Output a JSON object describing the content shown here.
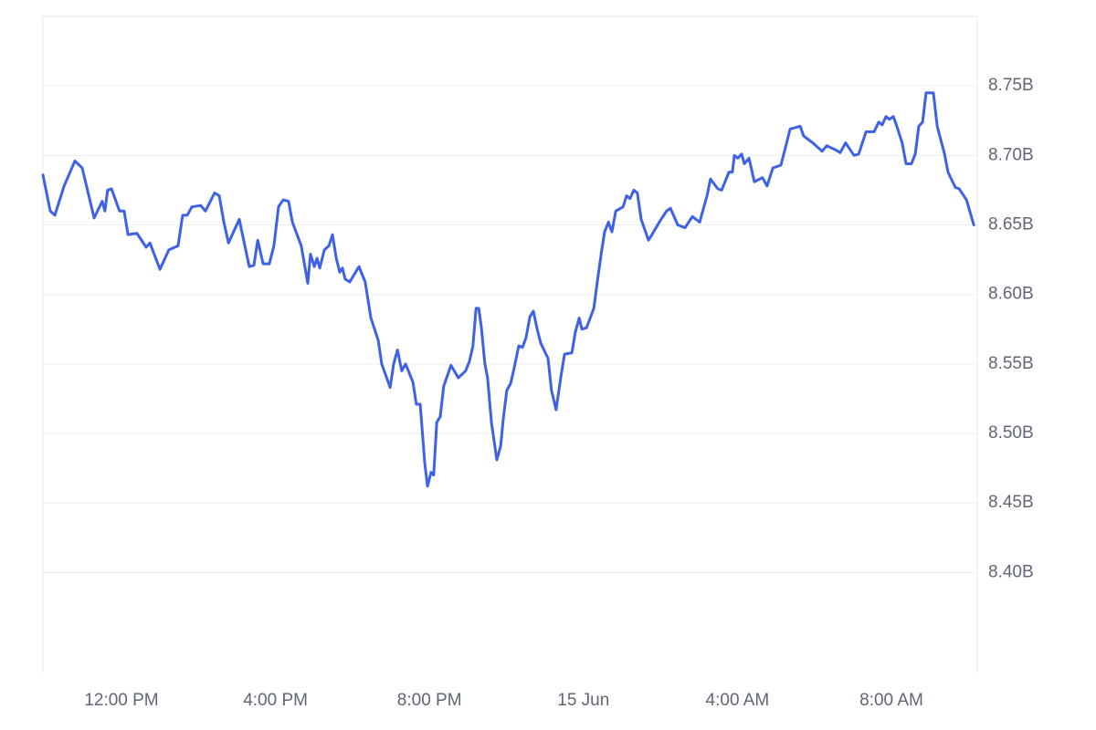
{
  "chart_data": {
    "type": "line",
    "color": "#3d62e6",
    "grid": true,
    "x": [
      9.96,
      10.15,
      10.27,
      10.51,
      10.79,
      10.98,
      11.29,
      11.5,
      11.57,
      11.64,
      11.74,
      11.95,
      12.07,
      12.17,
      12.4,
      12.64,
      12.74,
      13.0,
      13.23,
      13.47,
      13.59,
      13.71,
      13.83,
      14.06,
      14.18,
      14.42,
      14.54,
      14.66,
      14.78,
      15.06,
      15.32,
      15.44,
      15.54,
      15.68,
      15.84,
      15.96,
      16.08,
      16.2,
      16.34,
      16.44,
      16.67,
      16.84,
      16.91,
      17.01,
      17.08,
      17.15,
      17.27,
      17.39,
      17.48,
      17.58,
      17.67,
      17.74,
      17.81,
      17.93,
      18.17,
      18.33,
      18.48,
      18.67,
      18.76,
      18.98,
      19.07,
      19.17,
      19.28,
      19.38,
      19.57,
      19.66,
      19.76,
      19.88,
      19.95,
      20.04,
      20.11,
      20.19,
      20.28,
      20.37,
      20.56,
      20.75,
      20.94,
      21.04,
      21.13,
      21.21,
      21.28,
      21.35,
      21.44,
      21.51,
      21.61,
      21.75,
      21.85,
      21.92,
      22.01,
      22.11,
      22.2,
      22.32,
      22.42,
      22.51,
      22.61,
      22.7,
      22.79,
      22.89,
      23.08,
      23.17,
      23.29,
      23.41,
      23.51,
      23.7,
      23.79,
      23.89,
      23.96,
      24.08,
      24.27,
      24.36,
      24.46,
      24.55,
      24.65,
      24.74,
      24.84,
      25.03,
      25.12,
      25.21,
      25.31,
      25.4,
      25.5,
      25.69,
      25.78,
      25.97,
      26.16,
      26.26,
      26.45,
      26.64,
      26.83,
      27.02,
      27.21,
      27.3,
      27.49,
      27.59,
      27.78,
      27.87,
      27.92,
      28.01,
      28.11,
      28.18,
      28.3,
      28.44,
      28.65,
      28.77,
      28.92,
      29.13,
      29.37,
      29.63,
      29.72,
      29.96,
      30.2,
      30.32,
      30.55,
      30.67,
      30.81,
      31.03,
      31.15,
      31.34,
      31.55,
      31.67,
      31.76,
      31.86,
      31.95,
      32.05,
      32.14,
      32.28,
      32.38,
      32.52,
      32.62,
      32.71,
      32.81,
      32.9,
      33.09,
      33.19,
      33.38,
      33.47,
      33.66,
      33.76,
      33.95,
      34.14
    ],
    "values": [
      8.686,
      8.66,
      8.657,
      8.678,
      8.696,
      8.691,
      8.655,
      8.667,
      8.66,
      8.675,
      8.676,
      8.66,
      8.66,
      8.643,
      8.644,
      8.634,
      8.637,
      8.618,
      8.632,
      8.635,
      8.657,
      8.657,
      8.663,
      8.664,
      8.66,
      8.673,
      8.671,
      8.652,
      8.637,
      8.654,
      8.62,
      8.621,
      8.639,
      8.622,
      8.622,
      8.635,
      8.663,
      8.668,
      8.667,
      8.652,
      8.635,
      8.608,
      8.629,
      8.62,
      8.626,
      8.619,
      8.632,
      8.635,
      8.643,
      8.626,
      8.616,
      8.619,
      8.611,
      8.609,
      8.62,
      8.609,
      8.583,
      8.567,
      8.55,
      8.533,
      8.55,
      8.56,
      8.545,
      8.55,
      8.537,
      8.521,
      8.521,
      8.478,
      8.462,
      8.472,
      8.47,
      8.508,
      8.512,
      8.534,
      8.549,
      8.54,
      8.545,
      8.552,
      8.563,
      8.59,
      8.59,
      8.576,
      8.55,
      8.54,
      8.508,
      8.481,
      8.491,
      8.511,
      8.531,
      8.536,
      8.547,
      8.563,
      8.562,
      8.569,
      8.584,
      8.588,
      8.576,
      8.565,
      8.554,
      8.531,
      8.517,
      8.54,
      8.557,
      8.558,
      8.573,
      8.583,
      8.575,
      8.576,
      8.59,
      8.609,
      8.629,
      8.645,
      8.652,
      8.645,
      8.66,
      8.663,
      8.671,
      8.669,
      8.675,
      8.673,
      8.654,
      8.639,
      8.643,
      8.652,
      8.66,
      8.662,
      8.65,
      8.648,
      8.656,
      8.652,
      8.671,
      8.683,
      8.676,
      8.675,
      8.688,
      8.688,
      8.7,
      8.698,
      8.701,
      8.694,
      8.698,
      8.681,
      8.684,
      8.678,
      8.691,
      8.693,
      8.719,
      8.721,
      8.714,
      8.709,
      8.703,
      8.707,
      8.704,
      8.702,
      8.709,
      8.7,
      8.701,
      8.717,
      8.717,
      8.724,
      8.722,
      8.728,
      8.726,
      8.728,
      8.721,
      8.709,
      8.694,
      8.694,
      8.701,
      8.721,
      8.724,
      8.745,
      8.745,
      8.721,
      8.701,
      8.688,
      8.677,
      8.676,
      8.668,
      8.65
    ],
    "xlim": [
      9.96,
      34.23
    ],
    "xticks": [
      {
        "value": 12,
        "label": "12:00 PM"
      },
      {
        "value": 16,
        "label": "4:00 PM"
      },
      {
        "value": 20,
        "label": "8:00 PM"
      },
      {
        "value": 24,
        "label": "15 Jun"
      },
      {
        "value": 28,
        "label": "4:00 AM"
      },
      {
        "value": 32,
        "label": "8:00 AM"
      }
    ],
    "ylim": [
      8.328,
      8.8
    ],
    "yticks": [
      {
        "value": 8.4,
        "label": "8.40B"
      },
      {
        "value": 8.45,
        "label": "8.45B"
      },
      {
        "value": 8.5,
        "label": "8.50B"
      },
      {
        "value": 8.55,
        "label": "8.55B"
      },
      {
        "value": 8.6,
        "label": "8.60B"
      },
      {
        "value": 8.65,
        "label": "8.65B"
      },
      {
        "value": 8.7,
        "label": "8.70B"
      },
      {
        "value": 8.75,
        "label": "8.75B"
      }
    ]
  }
}
